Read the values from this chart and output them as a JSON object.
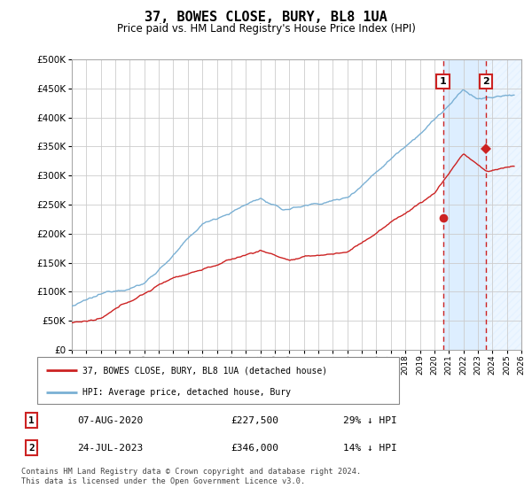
{
  "title": "37, BOWES CLOSE, BURY, BL8 1UA",
  "subtitle": "Price paid vs. HM Land Registry's House Price Index (HPI)",
  "background_color": "#ffffff",
  "grid_color": "#cccccc",
  "hpi_color": "#7ab0d4",
  "price_color": "#cc2222",
  "annotation1": {
    "date": "07-AUG-2020",
    "price": "£227,500",
    "pct": "29% ↓ HPI",
    "label": "1"
  },
  "annotation2": {
    "date": "24-JUL-2023",
    "price": "£346,000",
    "pct": "14% ↓ HPI",
    "label": "2"
  },
  "legend_line1": "37, BOWES CLOSE, BURY, BL8 1UA (detached house)",
  "legend_line2": "HPI: Average price, detached house, Bury",
  "footer": "Contains HM Land Registry data © Crown copyright and database right 2024.\nThis data is licensed under the Open Government Licence v3.0.",
  "ylim": [
    0,
    500000
  ],
  "yticks": [
    0,
    50000,
    100000,
    150000,
    200000,
    250000,
    300000,
    350000,
    400000,
    450000,
    500000
  ],
  "xlim_start": 1995,
  "xlim_end": 2026,
  "sale1_x": 2020.6,
  "sale1_y": 227500,
  "sale2_x": 2023.57,
  "sale2_y": 346000,
  "shade_color": "#ddeeff",
  "hatch_color": "#c8d8e8"
}
